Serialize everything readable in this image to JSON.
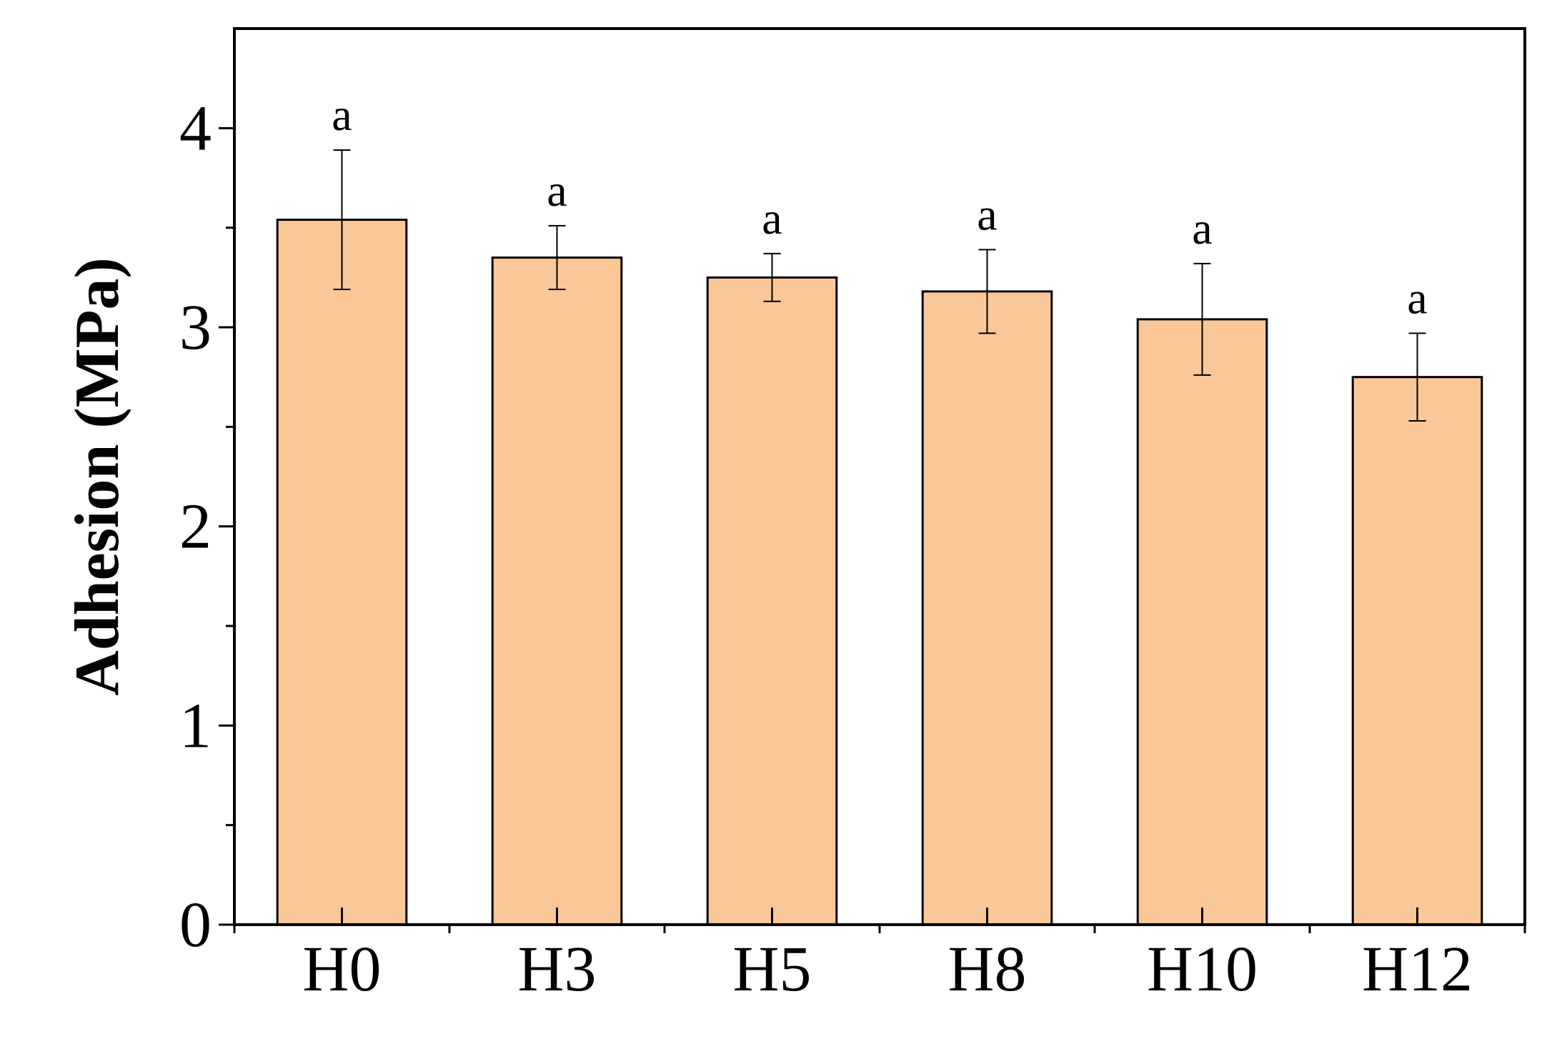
{
  "chart_data": {
    "type": "bar",
    "title": "",
    "xlabel": "",
    "ylabel": "Adhesion (MPa)",
    "categories": [
      "H0",
      "H3",
      "H5",
      "H8",
      "H10",
      "H12"
    ],
    "values": [
      3.54,
      3.35,
      3.25,
      3.18,
      3.04,
      2.75
    ],
    "errors": [
      0.35,
      0.16,
      0.12,
      0.21,
      0.28,
      0.22
    ],
    "significance": [
      "a",
      "a",
      "a",
      "a",
      "a",
      "a"
    ],
    "ylim": [
      0,
      4.5
    ],
    "yticks": [
      "0",
      "1",
      "2",
      "3",
      "4"
    ],
    "grid": false,
    "legend": "none",
    "colors": {
      "bar_fill": "#FAC898",
      "bar_stroke": "#000000",
      "axis": "#000000"
    }
  }
}
